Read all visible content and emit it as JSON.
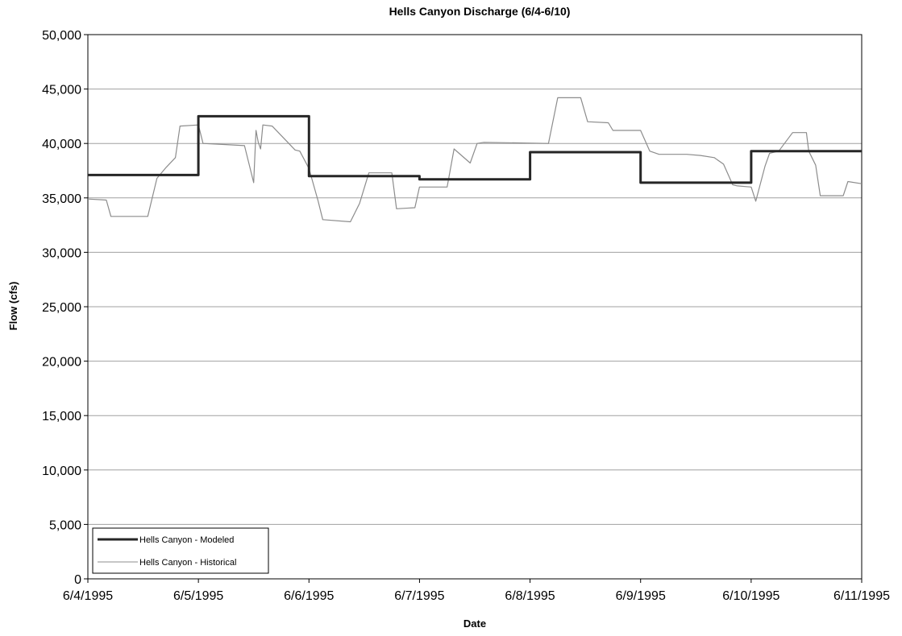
{
  "chart_data": {
    "type": "line",
    "title": "Hells Canyon Discharge (6/4-6/10)",
    "xlabel": "Date",
    "ylabel": "Flow (cfs)",
    "ylim": [
      0,
      50000
    ],
    "y_ticks": [
      "0",
      "5,000",
      "10,000",
      "15,000",
      "20,000",
      "25,000",
      "30,000",
      "35,000",
      "40,000",
      "45,000",
      "50,000"
    ],
    "x_ticks": [
      "6/4/1995",
      "6/5/1995",
      "6/6/1995",
      "6/7/1995",
      "6/8/1995",
      "6/9/1995",
      "6/10/1995",
      "6/11/1995"
    ],
    "grid": "horizontal",
    "legend_placement": "bottom-left",
    "series": [
      {
        "name": "Hells Canyon - Modeled",
        "color": "#262626",
        "style": "step",
        "x": [
          "6/4/1995 00:00",
          "6/5/1995 00:00",
          "6/6/1995 00:00",
          "6/7/1995 00:00",
          "6/8/1995 00:00",
          "6/9/1995 00:00",
          "6/10/1995 00:00",
          "6/11/1995 00:00"
        ],
        "values": [
          37100,
          42500,
          37000,
          36700,
          39200,
          36400,
          39300,
          39300
        ]
      },
      {
        "name": "Hells Canyon - Historical",
        "color": "#8c8c8c",
        "style": "line",
        "x": [
          "6/4/1995 00:00",
          "6/4/1995 04:00",
          "6/4/1995 05:00",
          "6/4/1995 13:00",
          "6/4/1995 15:00",
          "6/4/1995 17:00",
          "6/4/1995 19:00",
          "6/4/1995 20:00",
          "6/5/1995 00:00",
          "6/5/1995 01:00",
          "6/5/1995 06:00",
          "6/5/1995 10:00",
          "6/5/1995 12:00",
          "6/5/1995 12:30",
          "6/5/1995 13:00",
          "6/5/1995 13:30",
          "6/5/1995 14:00",
          "6/5/1995 16:00",
          "6/5/1995 21:00",
          "6/5/1995 22:00",
          "6/6/1995 00:00",
          "6/6/1995 02:00",
          "6/6/1995 03:00",
          "6/6/1995 09:00",
          "6/6/1995 11:00",
          "6/6/1995 13:00",
          "6/6/1995 18:00",
          "6/6/1995 19:00",
          "6/6/1995 23:00",
          "6/7/1995 00:00",
          "6/7/1995 06:00",
          "6/7/1995 07:30",
          "6/7/1995 11:00",
          "6/7/1995 12:30",
          "6/7/1995 14:00",
          "6/8/1995 04:00",
          "6/8/1995 06:00",
          "6/8/1995 11:00",
          "6/8/1995 12:30",
          "6/8/1995 17:00",
          "6/8/1995 18:00",
          "6/9/1995 00:00",
          "6/9/1995 02:00",
          "6/9/1995 04:00",
          "6/9/1995 10:00",
          "6/9/1995 13:00",
          "6/9/1995 16:00",
          "6/9/1995 18:00",
          "6/9/1995 20:00",
          "6/9/1995 21:00",
          "6/10/1995 00:00",
          "6/10/1995 01:00",
          "6/10/1995 03:00",
          "6/10/1995 04:00",
          "6/10/1995 06:00",
          "6/10/1995 09:00",
          "6/10/1995 12:00",
          "6/10/1995 12:30",
          "6/10/1995 14:00",
          "6/10/1995 15:00",
          "6/10/1995 20:00",
          "6/10/1995 21:00",
          "6/11/1995 00:00"
        ],
        "values": [
          34900,
          34800,
          33300,
          33300,
          36800,
          37800,
          38700,
          41600,
          41700,
          40000,
          39900,
          39800,
          36400,
          41200,
          40100,
          39500,
          41700,
          41600,
          39400,
          39300,
          37700,
          34700,
          33000,
          32800,
          34500,
          37300,
          37300,
          34000,
          34100,
          36000,
          36000,
          39500,
          38200,
          40000,
          40100,
          40000,
          44200,
          44200,
          42000,
          41900,
          41200,
          41200,
          39300,
          39000,
          39000,
          38900,
          38700,
          38100,
          36200,
          36100,
          36000,
          34700,
          37900,
          39100,
          39300,
          41000,
          41000,
          39300,
          38000,
          35200,
          35200,
          36500,
          36300
        ]
      }
    ]
  }
}
